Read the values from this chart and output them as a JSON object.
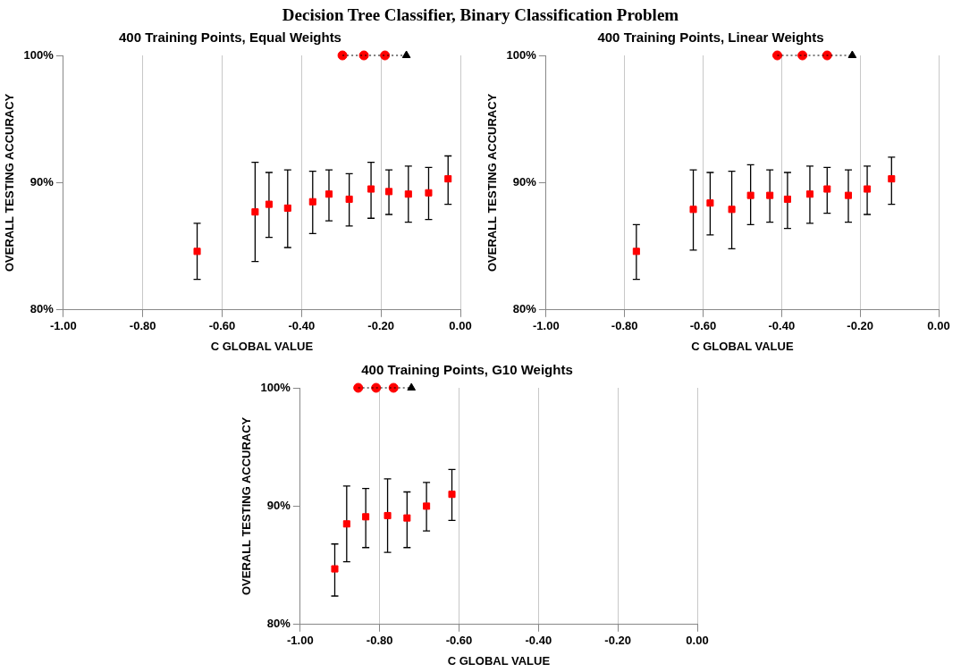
{
  "chart_data": [
    {
      "type": "other",
      "title": "Decision Tree Classifier, Binary Classification Problem"
    },
    {
      "type": "scatter",
      "title": "400 Training Points, Equal Weights",
      "xlabel": "C GLOBAL VALUE",
      "ylabel": "OVERALL TESTING ACCURACY",
      "xlim": [
        -1,
        0
      ],
      "xticks": [
        {
          "value": -1,
          "label": "-1.00"
        },
        {
          "value": -0.8,
          "label": "-0.80"
        },
        {
          "value": -0.6,
          "label": "-0.60"
        },
        {
          "value": -0.4,
          "label": "-0.40"
        },
        {
          "value": -0.2,
          "label": "-0.20"
        },
        {
          "value": 0,
          "label": "0.00"
        }
      ],
      "ylim": [
        80,
        100
      ],
      "yticks": [
        {
          "value": 80,
          "label": "80%"
        },
        {
          "value": 90,
          "label": "90%"
        },
        {
          "value": 100,
          "label": "100%"
        }
      ],
      "grid": "x",
      "legend": false,
      "series": [
        {
          "type": "scatter",
          "marker": "square",
          "color": "#ff0000",
          "x": [
            -0.663,
            -0.517,
            -0.482,
            -0.435,
            -0.372,
            -0.331,
            -0.28,
            -0.225,
            -0.18,
            -0.131,
            -0.08,
            -0.031
          ],
          "values": [
            84.6,
            87.7,
            88.3,
            88.0,
            88.5,
            89.1,
            88.7,
            89.5,
            89.3,
            89.1,
            89.2,
            90.3
          ],
          "errors": [
            [
              82.4,
              86.8
            ],
            [
              83.8,
              91.6
            ],
            [
              85.7,
              90.8
            ],
            [
              84.9,
              91.0
            ],
            [
              86.0,
              90.9
            ],
            [
              87.0,
              91.0
            ],
            [
              86.6,
              90.7
            ],
            [
              87.2,
              91.6
            ],
            [
              87.5,
              91.0
            ],
            [
              86.9,
              91.3
            ],
            [
              87.1,
              91.2
            ],
            [
              88.3,
              92.1
            ]
          ]
        },
        {
          "type": "line",
          "marker": "none",
          "line_style": "dotted",
          "color": "#000000",
          "x": [
            -0.297,
            -0.243,
            -0.19,
            -0.136
          ],
          "values": [
            100,
            100,
            100,
            100
          ]
        },
        {
          "type": "scatter",
          "marker": "circle",
          "color": "#ff0000",
          "x": [
            -0.297,
            -0.243,
            -0.19
          ],
          "values": [
            100,
            100,
            100
          ]
        },
        {
          "type": "scatter",
          "marker": "triangle",
          "color": "#000000",
          "x": [
            -0.136
          ],
          "values": [
            100
          ]
        }
      ]
    },
    {
      "type": "scatter",
      "title": "400 Training Points, Linear Weights",
      "xlabel": "C GLOBAL VALUE",
      "ylabel": "OVERALL TESTING ACCURACY",
      "xlim": [
        -1,
        0
      ],
      "xticks": [
        {
          "value": -1,
          "label": "-1.00"
        },
        {
          "value": -0.8,
          "label": "-0.80"
        },
        {
          "value": -0.6,
          "label": "-0.60"
        },
        {
          "value": -0.4,
          "label": "-0.40"
        },
        {
          "value": -0.2,
          "label": "-0.20"
        },
        {
          "value": 0,
          "label": "0.00"
        }
      ],
      "ylim": [
        80,
        100
      ],
      "yticks": [
        {
          "value": 80,
          "label": "80%"
        },
        {
          "value": 90,
          "label": "90%"
        },
        {
          "value": 100,
          "label": "100%"
        }
      ],
      "grid": "x",
      "legend": false,
      "series": [
        {
          "type": "scatter",
          "marker": "square",
          "color": "#ff0000",
          "x": [
            -0.77,
            -0.625,
            -0.582,
            -0.527,
            -0.479,
            -0.43,
            -0.385,
            -0.328,
            -0.284,
            -0.23,
            -0.182,
            -0.12
          ],
          "values": [
            84.6,
            87.9,
            88.4,
            87.9,
            89.0,
            89.0,
            88.7,
            89.1,
            89.5,
            89.0,
            89.5,
            90.3
          ],
          "errors": [
            [
              82.4,
              86.7
            ],
            [
              84.7,
              91.0
            ],
            [
              85.9,
              90.8
            ],
            [
              84.8,
              90.9
            ],
            [
              86.7,
              91.4
            ],
            [
              86.9,
              91.0
            ],
            [
              86.4,
              90.8
            ],
            [
              86.8,
              91.3
            ],
            [
              87.6,
              91.2
            ],
            [
              86.9,
              91.0
            ],
            [
              87.5,
              91.3
            ],
            [
              88.3,
              92.0
            ]
          ]
        },
        {
          "type": "line",
          "marker": "none",
          "line_style": "dotted",
          "color": "#000000",
          "x": [
            -0.411,
            -0.347,
            -0.284,
            -0.22
          ],
          "values": [
            100,
            100,
            100,
            100
          ]
        },
        {
          "type": "scatter",
          "marker": "circle",
          "color": "#ff0000",
          "x": [
            -0.411,
            -0.347,
            -0.284
          ],
          "values": [
            100,
            100,
            100
          ]
        },
        {
          "type": "scatter",
          "marker": "triangle",
          "color": "#000000",
          "x": [
            -0.22
          ],
          "values": [
            100
          ]
        }
      ]
    },
    {
      "type": "scatter",
      "title": "400 Training Points, G10 Weights",
      "xlabel": "C GLOBAL VALUE",
      "ylabel": "OVERALL TESTING ACCURACY",
      "xlim": [
        -1,
        0
      ],
      "xticks": [
        {
          "value": -1,
          "label": "-1.00"
        },
        {
          "value": -0.8,
          "label": "-0.80"
        },
        {
          "value": -0.6,
          "label": "-0.60"
        },
        {
          "value": -0.4,
          "label": "-0.40"
        },
        {
          "value": -0.2,
          "label": "-0.20"
        },
        {
          "value": 0,
          "label": "0.00"
        }
      ],
      "ylim": [
        80,
        100
      ],
      "yticks": [
        {
          "value": 80,
          "label": "80%"
        },
        {
          "value": 90,
          "label": "90%"
        },
        {
          "value": 100,
          "label": "100%"
        }
      ],
      "grid": "x",
      "legend": false,
      "series": [
        {
          "type": "scatter",
          "marker": "square",
          "color": "#ff0000",
          "x": [
            -0.913,
            -0.883,
            -0.835,
            -0.78,
            -0.731,
            -0.682,
            -0.618
          ],
          "values": [
            84.7,
            88.5,
            89.1,
            89.2,
            89.0,
            90.0,
            91.0
          ],
          "errors": [
            [
              82.4,
              86.8
            ],
            [
              85.3,
              91.7
            ],
            [
              86.5,
              91.5
            ],
            [
              86.1,
              92.3
            ],
            [
              86.5,
              91.2
            ],
            [
              87.9,
              92.0
            ],
            [
              88.8,
              93.1
            ]
          ]
        },
        {
          "type": "line",
          "marker": "none",
          "line_style": "dotted",
          "color": "#000000",
          "x": [
            -0.854,
            -0.809,
            -0.765,
            -0.72
          ],
          "values": [
            100,
            100,
            100,
            100
          ]
        },
        {
          "type": "scatter",
          "marker": "circle",
          "color": "#ff0000",
          "x": [
            -0.854,
            -0.809,
            -0.765
          ],
          "values": [
            100,
            100,
            100
          ]
        },
        {
          "type": "scatter",
          "marker": "triangle",
          "color": "#000000",
          "x": [
            -0.72
          ],
          "values": [
            100
          ]
        }
      ]
    }
  ]
}
